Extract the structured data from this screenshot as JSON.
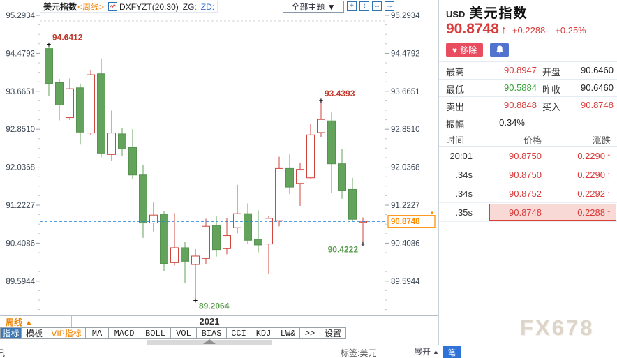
{
  "header": {
    "title": "美元指数",
    "period_tag": "<周线>",
    "indicator": "DXFYZT(20,30)",
    "zg_label": "ZG:",
    "zd_label": "ZD:",
    "themes_dropdown": "全部主题 ▼",
    "icon_buttons": [
      "crosshair",
      "y-axis-scale",
      "x-axis-scale",
      "shift-right"
    ],
    "icon_glyphs": {
      "crosshair": "+",
      "y-axis-scale": "↕",
      "x-axis-scale": "↔",
      "shift-right": "→"
    }
  },
  "chart_data": {
    "type": "candlestick",
    "symbol": "USD 美元指数",
    "period": "周线",
    "y_ticks": [
      "95.2934",
      "94.4792",
      "93.6651",
      "92.8510",
      "92.0368",
      "91.2227",
      "90.4086",
      "89.5944"
    ],
    "x_ticks": [
      {
        "label": "2021",
        "candle": 15.3
      }
    ],
    "current_price": 90.8748,
    "current_price_label": "90.8748",
    "candles": [
      [
        94.58,
        94.6412,
        93.56,
        93.83
      ],
      [
        93.85,
        93.93,
        93.04,
        93.37
      ],
      [
        93.1,
        93.94,
        93.05,
        93.72
      ],
      [
        93.74,
        93.83,
        92.52,
        92.79
      ],
      [
        92.77,
        94.12,
        92.72,
        94.02
      ],
      [
        94.04,
        94.37,
        92.25,
        92.34
      ],
      [
        92.31,
        93.25,
        92.18,
        92.77
      ],
      [
        92.75,
        92.87,
        92.27,
        92.43
      ],
      [
        92.46,
        92.85,
        91.78,
        91.87
      ],
      [
        91.87,
        92.09,
        90.52,
        90.84
      ],
      [
        90.84,
        91.28,
        90.66,
        91.01
      ],
      [
        91.03,
        91.1,
        89.8,
        89.97
      ],
      [
        89.99,
        91.05,
        89.93,
        90.31
      ],
      [
        90.31,
        90.43,
        89.56,
        90.02
      ],
      [
        89.95,
        90.28,
        89.2064,
        90.13
      ],
      [
        90.08,
        90.93,
        89.96,
        90.77
      ],
      [
        90.79,
        90.99,
        90.12,
        90.27
      ],
      [
        90.29,
        90.94,
        90.17,
        90.57
      ],
      [
        90.74,
        91.66,
        90.62,
        91.04
      ],
      [
        91.04,
        91.26,
        90.39,
        90.47
      ],
      [
        90.49,
        91.11,
        90.21,
        90.37
      ],
      [
        90.39,
        90.99,
        89.75,
        90.94
      ],
      [
        90.89,
        92.26,
        90.77,
        92.01
      ],
      [
        92.01,
        92.31,
        91.46,
        91.61
      ],
      [
        91.69,
        92.13,
        91.21,
        91.99
      ],
      [
        91.81,
        92.96,
        91.79,
        92.73
      ],
      [
        92.78,
        93.4393,
        92.68,
        93.06
      ],
      [
        93.03,
        93.21,
        91.49,
        92.11
      ],
      [
        92.11,
        92.43,
        91.36,
        91.54
      ],
      [
        91.56,
        91.81,
        90.89,
        90.92
      ],
      [
        90.86,
        90.96,
        90.4222,
        90.8748
      ]
    ],
    "annotations": [
      {
        "text": "94.6412",
        "value": 94.6412,
        "candle": 0,
        "side": "high",
        "color": "#c0392b"
      },
      {
        "text": "93.4393",
        "value": 93.4393,
        "candle": 26,
        "side": "high",
        "color": "#c0392b"
      },
      {
        "text": "90.4222",
        "value": 90.4222,
        "candle": 30,
        "side": "low",
        "color": "#5b9e50",
        "anchor": "end"
      },
      {
        "text": "89.2064",
        "value": 89.2064,
        "candle": 14,
        "side": "low",
        "color": "#5b9e50"
      }
    ],
    "colors": {
      "up": "#cf463c",
      "down": "#63a35c",
      "down_stroke": "#55924f",
      "current_line": "#1b7fdd",
      "price_tag": "#ff8a00"
    },
    "legend_position": "none",
    "grid": "off"
  },
  "footer": {
    "period_button": "周线 ▲",
    "year_label": "2021",
    "toolbar": [
      "指标",
      "模板",
      "VIP指标",
      "MA",
      "MACD",
      "BOLL",
      "VOL",
      "BIAS",
      "CCI",
      "KDJ",
      "LW&",
      ">>",
      "设置"
    ],
    "partial_char": "讯",
    "tag_label": "标签:美元",
    "expand_label": "展开",
    "pen_button": "笔"
  },
  "panel": {
    "currency_code": "USD",
    "name": "美元指数",
    "price": "90.8748",
    "arrow_up": "↑",
    "change": "+0.2288",
    "change_pct": "+0.25%",
    "remove_button": "移除",
    "heart_icon": "♥",
    "stats": [
      {
        "label": "最高",
        "value": "90.8947",
        "color": "red",
        "label2": "开盘",
        "value2": "90.6460",
        "color2": "dark"
      },
      {
        "label": "最低",
        "value": "90.5884",
        "color": "green",
        "label2": "昨收",
        "value2": "90.6460",
        "color2": "dark"
      },
      {
        "label": "卖出",
        "value": "90.8848",
        "color": "red",
        "label2": "买入",
        "value2": "90.8748",
        "color2": "red"
      },
      {
        "label": "振幅",
        "value": "0.34%",
        "color": "dark"
      }
    ],
    "table": {
      "headers": [
        "时间",
        "价格",
        "涨跌"
      ],
      "rows": [
        {
          "time": "20:01",
          "time_color": "orange",
          "price": "90.8750",
          "change": "0.2290",
          "dir": "up"
        },
        {
          "time": ".34s",
          "time_color": "dark",
          "price": "90.8750",
          "change": "0.2290",
          "dir": "up"
        },
        {
          "time": ".34s",
          "time_color": "dark",
          "price": "90.8752",
          "change": "0.2292",
          "dir": "up"
        },
        {
          "time": ".35s",
          "time_color": "dark",
          "price": "90.8748",
          "change": "0.2288",
          "dir": "up",
          "highlight": true
        }
      ]
    },
    "watermark": "FX678"
  }
}
